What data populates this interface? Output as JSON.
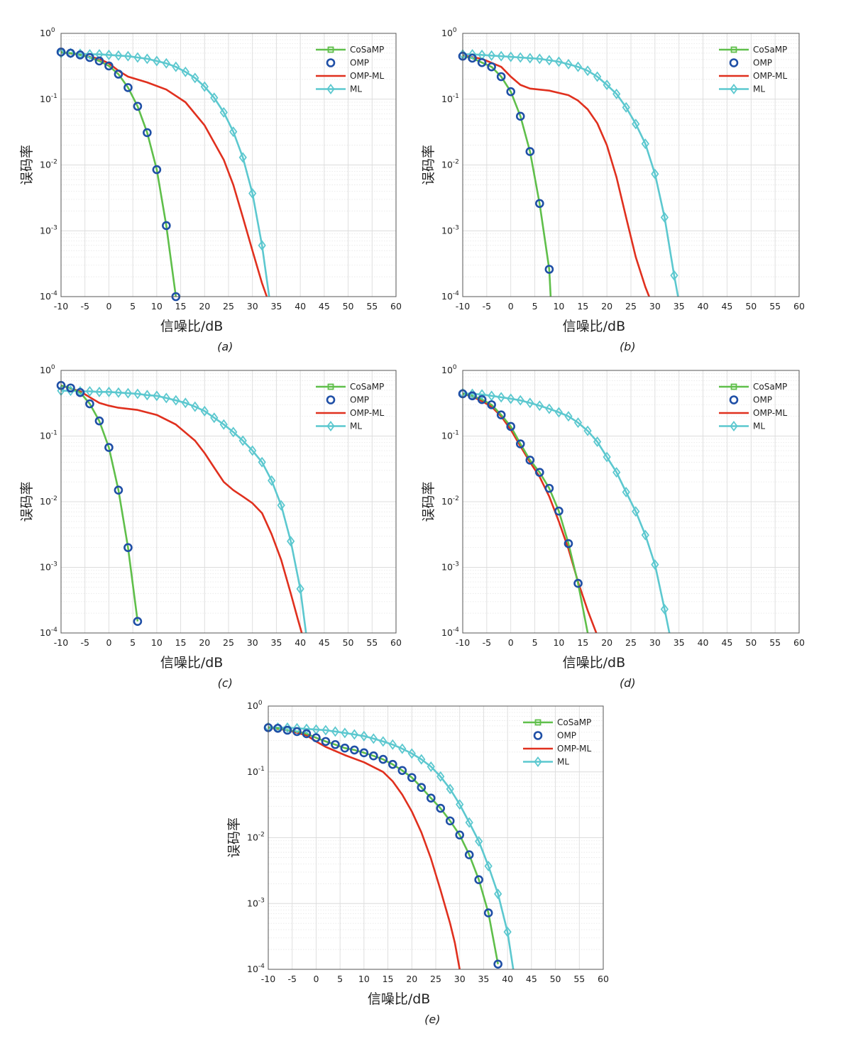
{
  "legend_labels": [
    "CoSaMP",
    "OMP",
    "OMP-ML",
    "ML"
  ],
  "series_colors": {
    "CoSaMP": "#5fbf4a",
    "OMP": "#1f4fa6",
    "OMP-ML": "#e0301e",
    "ML": "#5cc8cf"
  },
  "axis_style": {
    "grid": true,
    "y_scale": "log",
    "legend_position": "top-right"
  },
  "chart_data": [
    {
      "type": "line",
      "caption": "(a)",
      "xlabel": "信噪比/dB",
      "ylabel": "误码率",
      "xlim": [
        -10,
        60
      ],
      "ylim": [
        0.0001,
        1
      ],
      "xticks": [
        -10,
        -5,
        0,
        5,
        10,
        15,
        20,
        25,
        30,
        35,
        40,
        45,
        50,
        55,
        60
      ],
      "yticks": [
        {
          "m": "10",
          "e": "-4",
          "v": 0.0001
        },
        {
          "m": "10",
          "e": "-3",
          "v": 0.001
        },
        {
          "m": "10",
          "e": "-2",
          "v": 0.01
        },
        {
          "m": "10",
          "e": "-1",
          "v": 0.1
        },
        {
          "m": "10",
          "e": "0",
          "v": 1
        }
      ],
      "series": [
        {
          "name": "CoSaMP",
          "x": [
            -10,
            -8,
            -6,
            -4,
            -2,
            0,
            2,
            4,
            6,
            8,
            10,
            12,
            14
          ],
          "y": [
            0.52,
            0.5,
            0.47,
            0.43,
            0.38,
            0.32,
            0.24,
            0.15,
            0.078,
            0.031,
            0.0085,
            0.0012,
            0.0001
          ]
        },
        {
          "name": "OMP",
          "x": [
            -10,
            -8,
            -6,
            -4,
            -2,
            0,
            2,
            4,
            6,
            8,
            10,
            12,
            14
          ],
          "y": [
            0.52,
            0.5,
            0.47,
            0.43,
            0.38,
            0.32,
            0.24,
            0.15,
            0.078,
            0.031,
            0.0085,
            0.0012,
            0.0001
          ]
        },
        {
          "name": "OMP-ML",
          "x": [
            -10,
            -6,
            -2,
            0,
            2,
            4,
            8,
            12,
            16,
            20,
            24,
            26,
            28,
            30,
            32,
            33
          ],
          "y": [
            0.52,
            0.47,
            0.41,
            0.35,
            0.27,
            0.22,
            0.18,
            0.14,
            0.09,
            0.04,
            0.012,
            0.005,
            0.0016,
            0.0005,
            0.00016,
            0.0001
          ]
        },
        {
          "name": "ML",
          "x": [
            -10,
            -8,
            -6,
            -4,
            -2,
            0,
            2,
            4,
            6,
            8,
            10,
            12,
            14,
            16,
            18,
            20,
            22,
            24,
            26,
            28,
            30,
            32,
            33.5
          ],
          "y": [
            0.5,
            0.5,
            0.49,
            0.48,
            0.48,
            0.47,
            0.46,
            0.45,
            0.43,
            0.41,
            0.38,
            0.35,
            0.31,
            0.26,
            0.21,
            0.155,
            0.105,
            0.063,
            0.032,
            0.013,
            0.0037,
            0.0006,
            0.0001
          ]
        }
      ]
    },
    {
      "type": "line",
      "caption": "(b)",
      "xlabel": "信噪比/dB",
      "ylabel": "误码率",
      "xlim": [
        -10,
        60
      ],
      "ylim": [
        0.0001,
        1
      ],
      "xticks": [
        -10,
        -5,
        0,
        5,
        10,
        15,
        20,
        25,
        30,
        35,
        40,
        45,
        50,
        55,
        60
      ],
      "yticks": [
        {
          "m": "10",
          "e": "-4",
          "v": 0.0001
        },
        {
          "m": "10",
          "e": "-3",
          "v": 0.001
        },
        {
          "m": "10",
          "e": "-2",
          "v": 0.01
        },
        {
          "m": "10",
          "e": "-1",
          "v": 0.1
        },
        {
          "m": "10",
          "e": "0",
          "v": 1
        }
      ],
      "series": [
        {
          "name": "CoSaMP",
          "x": [
            -10,
            -8,
            -6,
            -4,
            -2,
            0,
            2,
            4,
            6,
            8,
            8.3
          ],
          "y": [
            0.45,
            0.42,
            0.36,
            0.31,
            0.22,
            0.13,
            0.055,
            0.016,
            0.0026,
            0.00026,
            0.0001
          ]
        },
        {
          "name": "OMP",
          "x": [
            -10,
            -8,
            -6,
            -4,
            -2,
            0,
            2,
            4,
            6,
            8
          ],
          "y": [
            0.45,
            0.42,
            0.36,
            0.31,
            0.22,
            0.13,
            0.055,
            0.016,
            0.0026,
            0.00026
          ]
        },
        {
          "name": "OMP-ML",
          "x": [
            -10,
            -6,
            -2,
            0,
            2,
            4,
            8,
            12,
            14,
            16,
            18,
            20,
            22,
            24,
            26,
            28,
            28.8
          ],
          "y": [
            0.46,
            0.41,
            0.31,
            0.22,
            0.165,
            0.145,
            0.135,
            0.115,
            0.095,
            0.07,
            0.043,
            0.02,
            0.0065,
            0.0016,
            0.0004,
            0.00014,
            0.0001
          ]
        },
        {
          "name": "ML",
          "x": [
            -10,
            -8,
            -6,
            -4,
            -2,
            0,
            2,
            4,
            6,
            8,
            10,
            12,
            14,
            16,
            18,
            20,
            22,
            24,
            26,
            28,
            30,
            32,
            34,
            34.8
          ],
          "y": [
            0.48,
            0.48,
            0.47,
            0.46,
            0.45,
            0.44,
            0.43,
            0.42,
            0.41,
            0.39,
            0.37,
            0.34,
            0.31,
            0.27,
            0.22,
            0.165,
            0.12,
            0.075,
            0.042,
            0.021,
            0.0073,
            0.0016,
            0.00021,
            0.0001
          ]
        }
      ]
    },
    {
      "type": "line",
      "caption": "(c)",
      "xlabel": "信噪比/dB",
      "ylabel": "误码率",
      "xlim": [
        -10,
        60
      ],
      "ylim": [
        0.0001,
        1
      ],
      "xticks": [
        -10,
        -5,
        0,
        5,
        10,
        15,
        20,
        25,
        30,
        35,
        40,
        45,
        50,
        55,
        60
      ],
      "yticks": [
        {
          "m": "10",
          "e": "-4",
          "v": 0.0001
        },
        {
          "m": "10",
          "e": "-3",
          "v": 0.001
        },
        {
          "m": "10",
          "e": "-2",
          "v": 0.01
        },
        {
          "m": "10",
          "e": "-1",
          "v": 0.1
        },
        {
          "m": "10",
          "e": "0",
          "v": 1
        }
      ],
      "series": [
        {
          "name": "CoSaMP",
          "x": [
            -10,
            -8,
            -6,
            -4,
            -2,
            0,
            2,
            4,
            6
          ],
          "y": [
            0.59,
            0.54,
            0.46,
            0.31,
            0.17,
            0.067,
            0.015,
            0.002,
            0.00015
          ]
        },
        {
          "name": "OMP",
          "x": [
            -10,
            -8,
            -6,
            -4,
            -2,
            0,
            2,
            4,
            6
          ],
          "y": [
            0.59,
            0.54,
            0.46,
            0.31,
            0.17,
            0.067,
            0.015,
            0.002,
            0.00015
          ]
        },
        {
          "name": "OMP-ML",
          "x": [
            -10,
            -6,
            -4,
            -2,
            0,
            2,
            6,
            10,
            14,
            18,
            20,
            22,
            24,
            26,
            28,
            30,
            32,
            34,
            36,
            38,
            39.5,
            40.3
          ],
          "y": [
            0.59,
            0.48,
            0.39,
            0.32,
            0.29,
            0.27,
            0.25,
            0.21,
            0.15,
            0.085,
            0.055,
            0.033,
            0.02,
            0.015,
            0.012,
            0.0095,
            0.0067,
            0.0032,
            0.0013,
            0.0004,
            0.00016,
            0.0001
          ]
        },
        {
          "name": "ML",
          "x": [
            -10,
            -8,
            -6,
            -4,
            -2,
            0,
            2,
            4,
            6,
            8,
            10,
            12,
            14,
            16,
            18,
            20,
            22,
            24,
            26,
            28,
            30,
            32,
            34,
            36,
            38,
            40,
            41.2
          ],
          "y": [
            0.49,
            0.49,
            0.48,
            0.48,
            0.47,
            0.47,
            0.46,
            0.45,
            0.44,
            0.42,
            0.41,
            0.38,
            0.35,
            0.32,
            0.28,
            0.24,
            0.19,
            0.15,
            0.115,
            0.085,
            0.06,
            0.04,
            0.021,
            0.0088,
            0.0025,
            0.00047,
            0.0001
          ]
        }
      ]
    },
    {
      "type": "line",
      "caption": "(d)",
      "xlabel": "信噪比/dB",
      "ylabel": "误码率",
      "xlim": [
        -10,
        60
      ],
      "ylim": [
        0.0001,
        1
      ],
      "xticks": [
        -10,
        -5,
        0,
        5,
        10,
        15,
        20,
        25,
        30,
        35,
        40,
        45,
        50,
        55,
        60
      ],
      "yticks": [
        {
          "m": "10",
          "e": "-4",
          "v": 0.0001
        },
        {
          "m": "10",
          "e": "-3",
          "v": 0.001
        },
        {
          "m": "10",
          "e": "-2",
          "v": 0.01
        },
        {
          "m": "10",
          "e": "-1",
          "v": 0.1
        },
        {
          "m": "10",
          "e": "0",
          "v": 1
        }
      ],
      "series": [
        {
          "name": "CoSaMP",
          "x": [
            -10,
            -8,
            -6,
            -4,
            -2,
            0,
            2,
            4,
            6,
            8,
            10,
            12,
            14,
            16
          ],
          "y": [
            0.44,
            0.41,
            0.36,
            0.3,
            0.21,
            0.14,
            0.076,
            0.043,
            0.028,
            0.016,
            0.0072,
            0.0023,
            0.00057,
            0.0001
          ]
        },
        {
          "name": "OMP",
          "x": [
            -10,
            -8,
            -6,
            -4,
            -2,
            0,
            2,
            4,
            6,
            8,
            10,
            12,
            14
          ],
          "y": [
            0.44,
            0.41,
            0.36,
            0.3,
            0.21,
            0.14,
            0.076,
            0.043,
            0.028,
            0.016,
            0.0072,
            0.0023,
            0.00057
          ]
        },
        {
          "name": "OMP-ML",
          "x": [
            -10,
            -8,
            -6,
            -4,
            -2,
            0,
            2,
            4,
            6,
            8,
            10,
            12,
            14,
            16,
            17.8
          ],
          "y": [
            0.44,
            0.4,
            0.34,
            0.28,
            0.2,
            0.125,
            0.07,
            0.04,
            0.024,
            0.012,
            0.005,
            0.0019,
            0.0006,
            0.00022,
            0.0001
          ]
        },
        {
          "name": "ML",
          "x": [
            -10,
            -8,
            -6,
            -4,
            -2,
            0,
            2,
            4,
            6,
            8,
            10,
            12,
            14,
            16,
            18,
            20,
            22,
            24,
            26,
            28,
            30,
            32,
            33
          ],
          "y": [
            0.45,
            0.44,
            0.43,
            0.41,
            0.39,
            0.37,
            0.35,
            0.32,
            0.29,
            0.26,
            0.23,
            0.2,
            0.16,
            0.12,
            0.082,
            0.048,
            0.028,
            0.014,
            0.0071,
            0.0031,
            0.0011,
            0.00023,
            0.0001
          ]
        }
      ]
    },
    {
      "type": "line",
      "caption": "(e)",
      "xlabel": "信噪比/dB",
      "ylabel": "误码率",
      "xlim": [
        -10,
        60
      ],
      "ylim": [
        0.0001,
        1
      ],
      "xticks": [
        -10,
        -5,
        0,
        5,
        10,
        15,
        20,
        25,
        30,
        35,
        40,
        45,
        50,
        55,
        60
      ],
      "yticks": [
        {
          "m": "10",
          "e": "-4",
          "v": 0.0001
        },
        {
          "m": "10",
          "e": "-3",
          "v": 0.001
        },
        {
          "m": "10",
          "e": "-2",
          "v": 0.01
        },
        {
          "m": "10",
          "e": "-1",
          "v": 0.1
        },
        {
          "m": "10",
          "e": "0",
          "v": 1
        }
      ],
      "series": [
        {
          "name": "CoSaMP",
          "x": [
            -10,
            -8,
            -6,
            -4,
            -2,
            0,
            2,
            4,
            6,
            8,
            10,
            12,
            14,
            16,
            18,
            20,
            22,
            24,
            26,
            28,
            30,
            32,
            34,
            36,
            38
          ],
          "y": [
            0.47,
            0.46,
            0.43,
            0.41,
            0.38,
            0.33,
            0.29,
            0.26,
            0.23,
            0.215,
            0.195,
            0.175,
            0.155,
            0.13,
            0.105,
            0.082,
            0.058,
            0.04,
            0.028,
            0.018,
            0.011,
            0.0055,
            0.0023,
            0.00072,
            0.00012
          ]
        },
        {
          "name": "OMP",
          "x": [
            -10,
            -8,
            -6,
            -4,
            -2,
            0,
            2,
            4,
            6,
            8,
            10,
            12,
            14,
            16,
            18,
            20,
            22,
            24,
            26,
            28,
            30,
            32,
            34,
            36,
            38
          ],
          "y": [
            0.47,
            0.46,
            0.43,
            0.41,
            0.38,
            0.33,
            0.29,
            0.26,
            0.23,
            0.215,
            0.195,
            0.175,
            0.155,
            0.13,
            0.105,
            0.082,
            0.058,
            0.04,
            0.028,
            0.018,
            0.011,
            0.0055,
            0.0023,
            0.00072,
            0.00012
          ]
        },
        {
          "name": "OMP-ML",
          "x": [
            -10,
            -6,
            -2,
            0,
            2,
            6,
            10,
            14,
            16,
            18,
            20,
            22,
            24,
            26,
            28,
            29,
            30
          ],
          "y": [
            0.47,
            0.43,
            0.36,
            0.29,
            0.24,
            0.18,
            0.14,
            0.1,
            0.072,
            0.045,
            0.025,
            0.012,
            0.0048,
            0.0016,
            0.0005,
            0.00025,
            0.0001
          ]
        },
        {
          "name": "ML",
          "x": [
            -10,
            -8,
            -6,
            -4,
            -2,
            0,
            2,
            4,
            6,
            8,
            10,
            12,
            14,
            16,
            18,
            20,
            22,
            24,
            26,
            28,
            30,
            32,
            34,
            36,
            38,
            40,
            41.2
          ],
          "y": [
            0.48,
            0.47,
            0.47,
            0.46,
            0.45,
            0.44,
            0.43,
            0.41,
            0.39,
            0.37,
            0.35,
            0.32,
            0.29,
            0.26,
            0.225,
            0.19,
            0.155,
            0.12,
            0.085,
            0.055,
            0.032,
            0.017,
            0.0088,
            0.0037,
            0.0014,
            0.00037,
            0.0001
          ]
        }
      ]
    }
  ]
}
